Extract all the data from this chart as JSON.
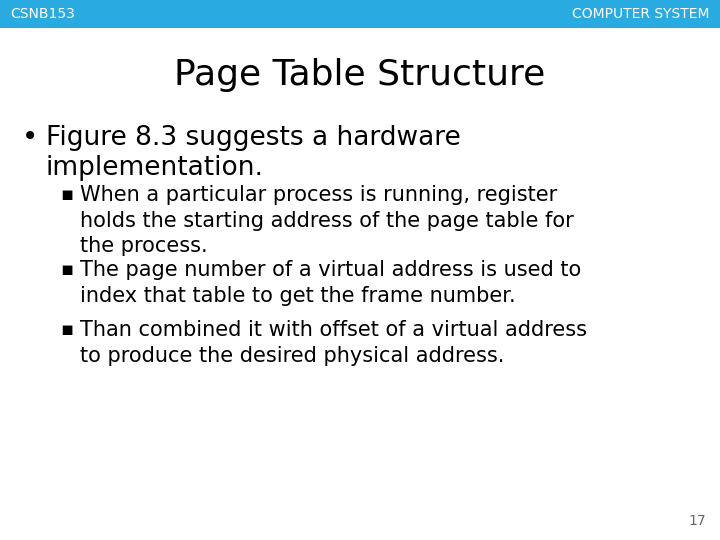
{
  "header_bg_color": "#29ABE2",
  "header_text_color": "#FFFFFF",
  "slide_bg_color": "#FFFFFF",
  "left_label": "CSNB153",
  "right_label": "COMPUTER SYSTEM",
  "title": "Page Table Structure",
  "title_color": "#000000",
  "title_fontsize": 26,
  "header_fontsize": 10,
  "page_number": "17",
  "bullet_main_line1": "Figure 8.3 suggests a hardware",
  "bullet_main_line2": "implementation.",
  "bullet_main_fontsize": 19,
  "sub_bullets": [
    "When a particular process is running, register\nholds the starting address of the page table for\nthe process.",
    "The page number of a virtual address is used to\nindex that table to get the frame number.",
    "Than combined it with offset of a virtual address\nto produce the desired physical address."
  ],
  "sub_bullet_fontsize": 15,
  "body_text_color": "#000000",
  "page_num_color": "#666666"
}
